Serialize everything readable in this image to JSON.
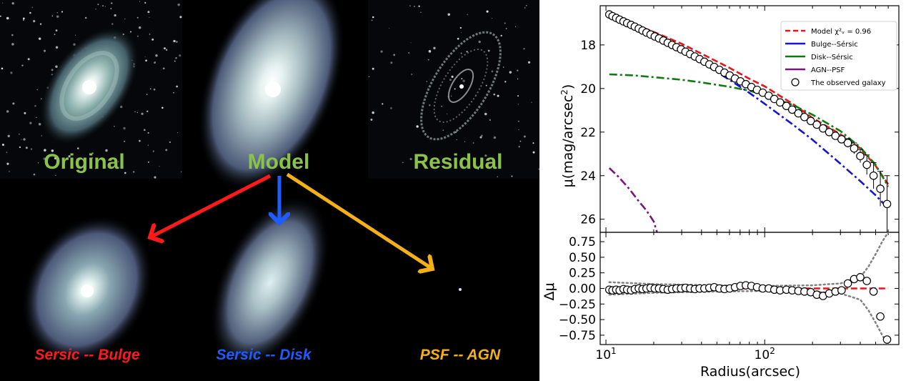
{
  "figure": {
    "panel_labels": {
      "original": "Original",
      "model": "Model",
      "residual": "Residual"
    },
    "component_labels": {
      "bulge": "Sersic -- Bulge",
      "disk": "Sersic -- Disk",
      "agn": "PSF -- AGN"
    },
    "colors": {
      "label_green": "#8bc34a",
      "bulge_red": "#ff1a1a",
      "disk_blue": "#1f5cff",
      "agn_orange": "#f5b016"
    }
  },
  "chart_data": [
    {
      "type": "line",
      "ylabel_prefix": "μ(mag/arcsec",
      "ylabel_sup": "2",
      "ylabel_suffix": ")",
      "xscale": "log",
      "xlim": [
        9.2,
        700
      ],
      "ylim": [
        26.6,
        16.2
      ],
      "yticks": [
        18,
        20,
        22,
        24,
        26
      ],
      "ytick_labels": [
        "18",
        "20",
        "22",
        "24",
        "26"
      ],
      "legend": {
        "placement": "top-right",
        "entries": [
          {
            "label": "Model χ²ᵥ = 0.96",
            "color": "#e8141a",
            "style": "dashed"
          },
          {
            "label": "Bulge--Sérsic",
            "color": "#1414d8",
            "style": "solid"
          },
          {
            "label": "Disk--Sérsic",
            "color": "#0f7a0f",
            "style": "solid"
          },
          {
            "label": "AGN--PSF",
            "color": "#7a1480",
            "style": "solid"
          },
          {
            "label": "The observed galaxy",
            "color": "#000000",
            "style": "circle"
          }
        ]
      },
      "series": [
        {
          "color": "#e8141a",
          "style": "dashed",
          "x": [
            10.5,
            15,
            20,
            30,
            40,
            60,
            80,
            100,
            150,
            200,
            300,
            400,
            500,
            600
          ],
          "y": [
            16.65,
            17.05,
            17.4,
            17.95,
            18.4,
            19.05,
            19.55,
            19.9,
            20.7,
            21.35,
            22.1,
            22.75,
            23.55,
            24.4
          ]
        },
        {
          "color": "#1414d8",
          "style": "dashdot",
          "x": [
            10.5,
            15,
            20,
            30,
            40,
            60,
            80,
            100,
            150,
            200,
            300,
            400,
            500,
            600
          ],
          "y": [
            16.75,
            17.25,
            17.65,
            18.3,
            18.8,
            19.6,
            20.2,
            20.7,
            21.65,
            22.35,
            23.45,
            24.25,
            24.9,
            25.5
          ]
        },
        {
          "color": "#0f7a0f",
          "style": "dashdot",
          "x": [
            10.5,
            15,
            20,
            30,
            40,
            60,
            80,
            100,
            150,
            200,
            300,
            400,
            500,
            600
          ],
          "y": [
            19.35,
            19.4,
            19.48,
            19.6,
            19.72,
            19.92,
            20.1,
            20.3,
            20.75,
            21.2,
            21.95,
            22.7,
            23.5,
            24.5
          ]
        },
        {
          "color": "#7a1480",
          "style": "dashdot",
          "x": [
            10.5,
            12,
            14,
            16,
            18,
            20,
            21
          ],
          "y": [
            23.65,
            24.05,
            24.6,
            25.15,
            25.6,
            26.1,
            26.6
          ]
        }
      ],
      "observed": {
        "x": [
          10.5,
          11,
          11.6,
          12.2,
          12.9,
          13.6,
          14.4,
          15.2,
          16.1,
          17,
          18,
          19.1,
          20.3,
          21.6,
          23,
          24.5,
          26.1,
          27.8,
          29.7,
          31.7,
          33.9,
          36.3,
          38.9,
          41.7,
          44.8,
          48.1,
          51.8,
          55.8,
          60.2,
          65,
          70.3,
          76.1,
          82.5,
          89.5,
          97.2,
          106,
          115,
          125,
          137,
          149,
          163,
          178,
          195,
          213,
          233,
          255,
          279,
          305,
          334,
          366,
          400,
          440,
          485,
          535,
          590
        ],
        "y": [
          16.6,
          16.68,
          16.76,
          16.84,
          16.92,
          17.0,
          17.08,
          17.16,
          17.25,
          17.34,
          17.43,
          17.52,
          17.61,
          17.7,
          17.8,
          17.9,
          18.0,
          18.1,
          18.2,
          18.31,
          18.42,
          18.53,
          18.65,
          18.77,
          18.89,
          19.01,
          19.14,
          19.27,
          19.4,
          19.54,
          19.67,
          19.8,
          19.93,
          20.06,
          20.19,
          20.33,
          20.48,
          20.64,
          20.8,
          20.97,
          21.14,
          21.31,
          21.49,
          21.66,
          21.83,
          22.0,
          22.17,
          22.33,
          22.5,
          22.75,
          23.1,
          23.5,
          24.0,
          24.6,
          25.3
        ],
        "yerr": [
          0.05,
          0.05,
          0.05,
          0.05,
          0.05,
          0.05,
          0.05,
          0.05,
          0.05,
          0.05,
          0.05,
          0.05,
          0.05,
          0.05,
          0.05,
          0.05,
          0.05,
          0.05,
          0.05,
          0.05,
          0.05,
          0.05,
          0.05,
          0.05,
          0.05,
          0.05,
          0.05,
          0.05,
          0.05,
          0.05,
          0.05,
          0.05,
          0.05,
          0.05,
          0.05,
          0.05,
          0.05,
          0.05,
          0.05,
          0.05,
          0.05,
          0.05,
          0.08,
          0.08,
          0.1,
          0.1,
          0.12,
          0.15,
          0.2,
          0.25,
          0.3,
          0.45,
          0.6,
          0.8,
          1.3
        ]
      }
    },
    {
      "type": "scatter",
      "ylabel": "Δμ",
      "xlabel": "Radius(arcsec)",
      "xscale": "log",
      "xlim": [
        9.2,
        700
      ],
      "ylim": [
        -0.9,
        0.9
      ],
      "yticks": [
        0.75,
        0.5,
        0.25,
        0.0,
        -0.25,
        -0.5,
        -0.75
      ],
      "ytick_labels": [
        "0.75",
        "0.50",
        "0.25",
        "0.00",
        "−0.25",
        "−0.50",
        "−0.75"
      ],
      "xticks": [
        10,
        100
      ],
      "xtick_labels": [
        "10¹",
        "10²"
      ],
      "series": [
        {
          "color": "#e8141a",
          "style": "dashed",
          "x": [
            10.5,
            600
          ],
          "y": [
            0.0,
            0.0
          ]
        },
        {
          "color": "#808080",
          "style": "dotted",
          "x": [
            10.5,
            20,
            50,
            100,
            200,
            300,
            400,
            450,
            500,
            550,
            600
          ],
          "y": [
            0.1,
            0.07,
            0.05,
            0.04,
            0.05,
            0.08,
            0.18,
            0.35,
            0.55,
            0.75,
            0.9
          ]
        },
        {
          "color": "#808080",
          "style": "dotted",
          "x": [
            10.5,
            20,
            50,
            100,
            200,
            300,
            400,
            450,
            500,
            550,
            600
          ],
          "y": [
            -0.1,
            -0.07,
            -0.05,
            -0.04,
            -0.05,
            -0.08,
            -0.18,
            -0.35,
            -0.55,
            -0.75,
            -0.9
          ]
        }
      ],
      "observed": {
        "x": [
          10.5,
          11,
          11.6,
          12.2,
          12.9,
          13.6,
          14.4,
          15.2,
          16.1,
          17,
          18,
          19.1,
          20.3,
          21.6,
          23,
          24.5,
          26.1,
          27.8,
          29.7,
          31.7,
          33.9,
          36.3,
          38.9,
          41.7,
          44.8,
          48.1,
          51.8,
          55.8,
          60.2,
          65,
          70.3,
          76.1,
          82.5,
          89.5,
          97.2,
          106,
          115,
          125,
          137,
          149,
          163,
          178,
          195,
          213,
          233,
          255,
          279,
          305,
          334,
          366,
          400,
          440,
          485,
          535,
          590
        ],
        "y": [
          -0.02,
          -0.03,
          -0.02,
          -0.03,
          -0.01,
          -0.02,
          -0.03,
          -0.01,
          0.0,
          -0.01,
          0.0,
          0.01,
          0.0,
          0.0,
          -0.01,
          -0.02,
          -0.01,
          0.0,
          0.0,
          0.01,
          0.0,
          -0.01,
          0.0,
          0.0,
          0.01,
          0.02,
          0.0,
          -0.01,
          0.0,
          0.02,
          0.04,
          0.05,
          0.04,
          0.02,
          0.0,
          0.0,
          -0.02,
          -0.03,
          -0.02,
          -0.03,
          -0.04,
          -0.05,
          -0.06,
          -0.1,
          -0.12,
          -0.08,
          -0.05,
          -0.03,
          0.08,
          0.15,
          0.18,
          0.12,
          -0.05,
          -0.45,
          -0.82
        ]
      }
    }
  ]
}
